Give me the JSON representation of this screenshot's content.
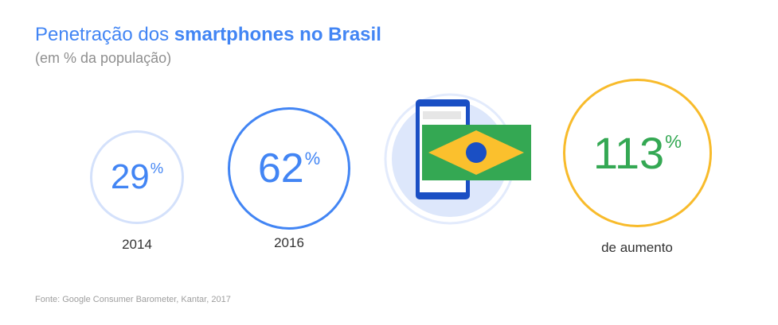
{
  "title": {
    "prefix": "Penetração dos ",
    "bold": "smartphones no Brasil"
  },
  "subtitle": "(em % da população)",
  "source": "Fonte: Google Consumer Barometer, Kantar, 2017",
  "colors": {
    "blue": "#4285f4",
    "light_blue": "#d4e1fb",
    "green": "#34a853",
    "yellow": "#f8bb2b"
  },
  "icons": [
    "smartphone-icon",
    "brazil-flag-icon"
  ],
  "chart_data": {
    "type": "bar",
    "categories": [
      "2014",
      "2016"
    ],
    "values": [
      29,
      62
    ],
    "unit": "%",
    "annotations": [
      {
        "value": 113,
        "unit": "%",
        "label": "de aumento"
      }
    ]
  },
  "labels": {
    "v2014": "29",
    "v2016": "62",
    "v113": "113",
    "pct": "%",
    "increase": "de aumento"
  }
}
